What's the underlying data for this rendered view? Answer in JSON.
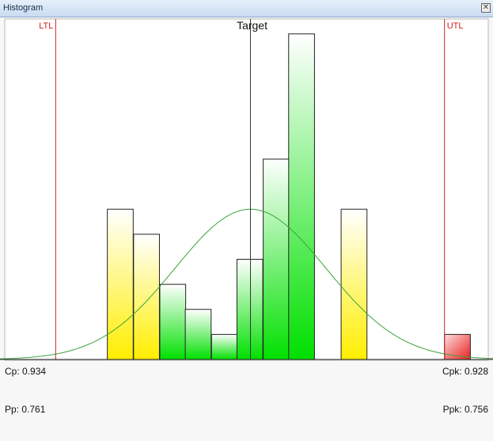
{
  "window": {
    "title": "Histogram",
    "close_glyph": "✕"
  },
  "stats": {
    "cp": "Cp: 0.934",
    "cpk": "Cpk: 0.928",
    "pp": "Pp: 0.761",
    "ppk": "Ppk: 0.756"
  },
  "colors": {
    "spec_line": "#cc2222",
    "target_line": "#333333",
    "curve": "#3aa33a",
    "in_spec_fill": "#00e000",
    "marginal_fill": "#ffee00",
    "out_of_spec_fill": "#e82020"
  },
  "chart_data": {
    "type": "bar",
    "title": "",
    "xlabel": "",
    "ylabel": "",
    "x_domain": [
      0,
      620
    ],
    "ylim": [
      0,
      13.5
    ],
    "ltl": {
      "label": "LTL",
      "x": 70
    },
    "utl": {
      "label": "UTL",
      "x": 559
    },
    "target": {
      "label": "Target",
      "x": 315
    },
    "bin_width": 32.5,
    "bars": [
      {
        "x": 135,
        "value": 6,
        "status": "marginal"
      },
      {
        "x": 168,
        "value": 5,
        "status": "marginal"
      },
      {
        "x": 201,
        "value": 3,
        "status": "in_spec"
      },
      {
        "x": 233,
        "value": 2,
        "status": "in_spec"
      },
      {
        "x": 266,
        "value": 1,
        "status": "in_spec"
      },
      {
        "x": 298,
        "value": 4,
        "status": "in_spec"
      },
      {
        "x": 331,
        "value": 8,
        "status": "in_spec"
      },
      {
        "x": 363,
        "value": 13,
        "status": "in_spec"
      },
      {
        "x": 429,
        "value": 6,
        "status": "marginal"
      },
      {
        "x": 559,
        "value": 1,
        "status": "out_of_spec"
      }
    ],
    "normal_curve": {
      "mean": 315,
      "sd": 95,
      "peak": 6
    },
    "grid": false,
    "legend": "none"
  }
}
